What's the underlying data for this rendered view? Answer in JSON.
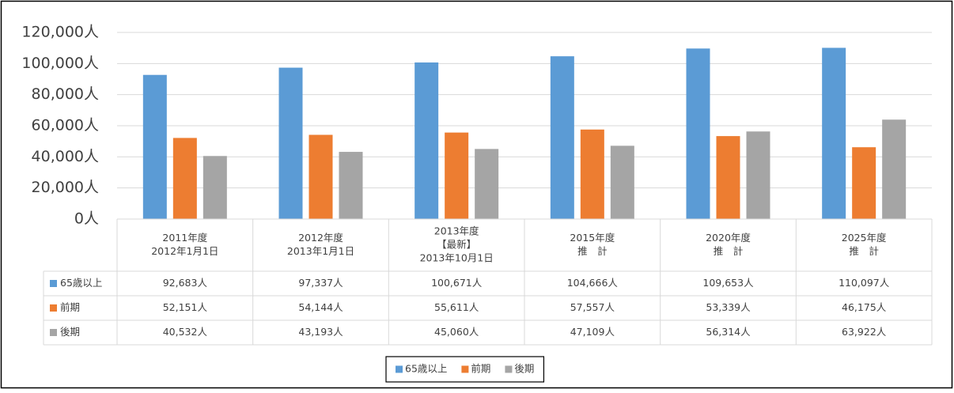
{
  "chart_data": {
    "type": "bar",
    "categories": [
      [
        "2011年度",
        "2012年1月1日"
      ],
      [
        "2012年度",
        "2013年1月1日"
      ],
      [
        "2013年度",
        "【最新】",
        "2013年10月1日"
      ],
      [
        "2015年度",
        "推　計"
      ],
      [
        "2020年度",
        "推　計"
      ],
      [
        "2025年度",
        "推　計"
      ]
    ],
    "series": [
      {
        "name": "65歳以上",
        "color": "#5b9bd5",
        "values": [
          92683,
          97337,
          100671,
          104666,
          109653,
          110097
        ],
        "value_labels": [
          "92,683人",
          "97,337人",
          "100,671人",
          "104,666人",
          "109,653人",
          "110,097人"
        ]
      },
      {
        "name": "前期",
        "color": "#ed7d31",
        "values": [
          52151,
          54144,
          55611,
          57557,
          53339,
          46175
        ],
        "value_labels": [
          "52,151人",
          "54,144人",
          "55,611人",
          "57,557人",
          "53,339人",
          "46,175人"
        ]
      },
      {
        "name": "後期",
        "color": "#a5a5a5",
        "values": [
          40532,
          43193,
          45060,
          47109,
          56314,
          63922
        ],
        "value_labels": [
          "40,532人",
          "43,193人",
          "45,060人",
          "47,109人",
          "56,314人",
          "63,922人"
        ]
      }
    ],
    "ylim": [
      0,
      120000
    ],
    "yticks": [
      {
        "value": 0,
        "label": "0人"
      },
      {
        "value": 20000,
        "label": "20,000人"
      },
      {
        "value": 40000,
        "label": "40,000人"
      },
      {
        "value": 60000,
        "label": "60,000人"
      },
      {
        "value": 80000,
        "label": "80,000人"
      },
      {
        "value": 100000,
        "label": "100,000人"
      },
      {
        "value": 120000,
        "label": "120,000人"
      }
    ],
    "grid": true,
    "legend": "bottom"
  }
}
